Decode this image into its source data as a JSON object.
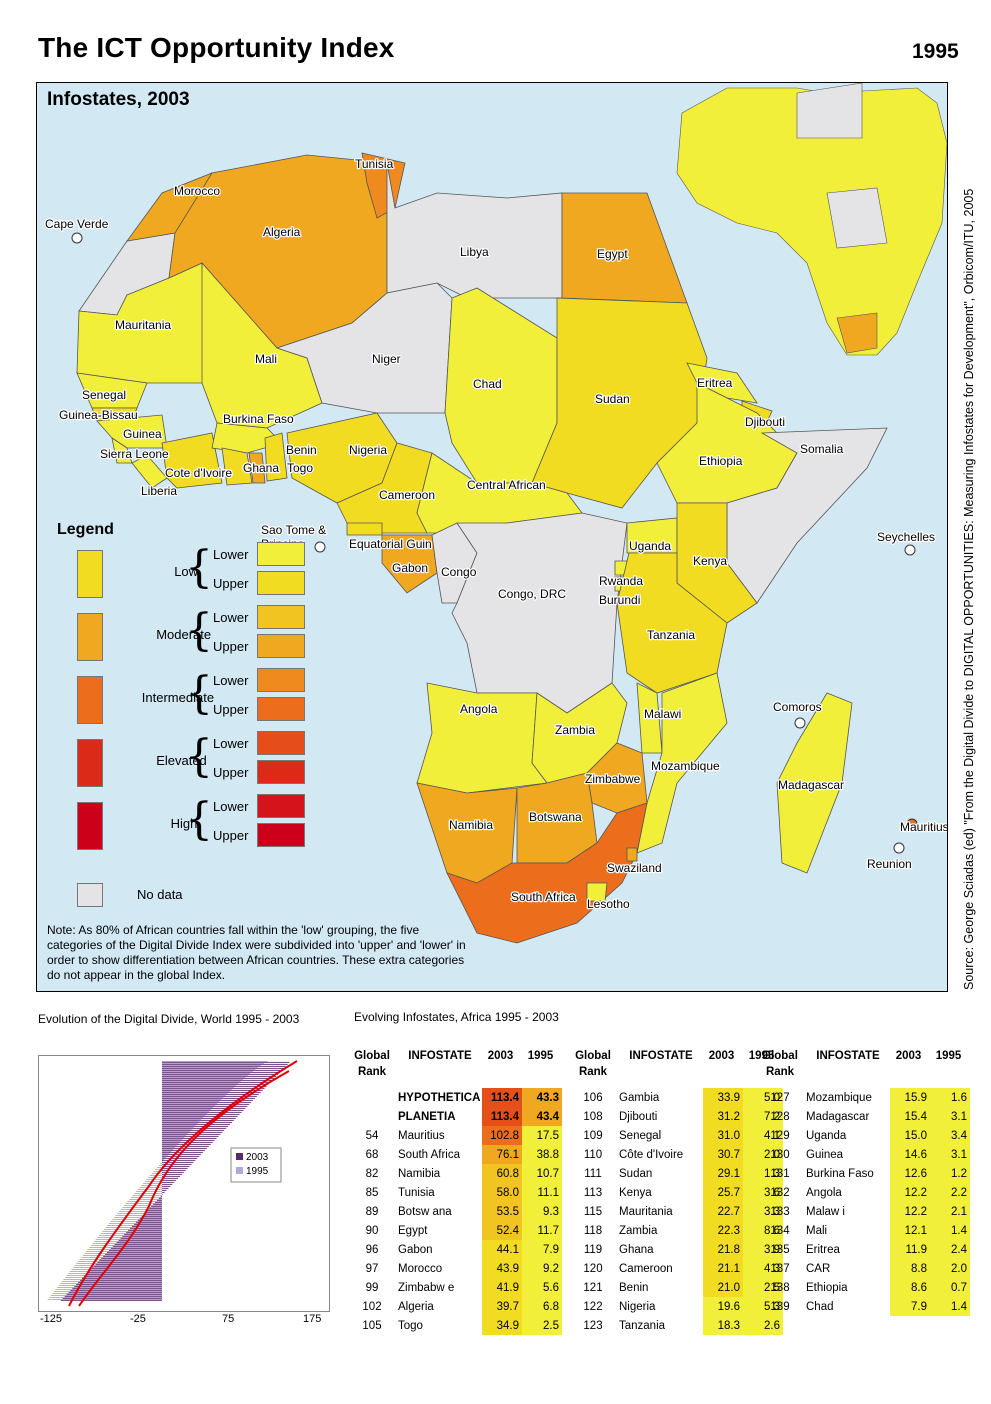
{
  "title": "The ICT Opportunity Index",
  "year": "1995",
  "map": {
    "subtitle": "Infostates, 2003",
    "source": "Source: George Sciadas (ed) \"From the Digital Divide to DIGITAL OPPORTUNITIES: Measuring Infostates for Development\", Orbicom/ITU, 2005",
    "labels": {
      "cape_verde": "Cape Verde",
      "morocco": "Morocco",
      "algeria": "Algeria",
      "tunisia": "Tunisia",
      "libya": "Libya",
      "egypt": "Egypt",
      "mauritania": "Mauritania",
      "mali": "Mali",
      "niger": "Niger",
      "chad": "Chad",
      "sudan": "Sudan",
      "eritrea": "Eritrea",
      "djibouti": "Djibouti",
      "somalia": "Somalia",
      "ethiopia": "Ethiopia",
      "senegal": "Senegal",
      "guinea_bissau": "Guinea-Bissau",
      "guinea": "Guinea",
      "sierra_leone": "Sierra Leone",
      "liberia": "Liberia",
      "cote": "Cote d'Ivoire",
      "burkina": "Burkina Faso",
      "ghana": "Ghana",
      "togo": "Togo",
      "benin": "Benin",
      "nigeria": "Nigeria",
      "cameroon": "Cameroon",
      "car": "Central African",
      "sao_tome": "Sao Tome & Principe",
      "eq_guinea": "Equatorial Guin",
      "gabon": "Gabon",
      "congo": "Congo",
      "drc": "Congo, DRC",
      "uganda": "Uganda",
      "kenya": "Kenya",
      "rwanda": "Rwanda",
      "burundi": "Burundi",
      "tanzania": "Tanzania",
      "seychelles": "Seychelles",
      "angola": "Angola",
      "zambia": "Zambia",
      "malawi": "Malawi",
      "comoros": "Comoros",
      "mozambique": "Mozambique",
      "zimbabwe": "Zimbabwe",
      "madagascar": "Madagascar",
      "namibia": "Namibia",
      "botswana": "Botswana",
      "mauritius": "Mauritius",
      "reunion": "Reunion",
      "swaziland": "Swaziland",
      "south_africa": "South Africa",
      "lesotho": "Lesotho"
    }
  },
  "legend": {
    "title": "Legend",
    "categories": [
      {
        "name": "Low",
        "lower_color": "#f2ef3a",
        "upper_color": "#f2dc22"
      },
      {
        "name": "Moderate",
        "lower_color": "#f1c422",
        "upper_color": "#f0a820"
      },
      {
        "name": "Intermediate",
        "lower_color": "#ef8a1e",
        "upper_color": "#ec6e1c"
      },
      {
        "name": "Elevated",
        "lower_color": "#e54e1a",
        "upper_color": "#dc2a18"
      },
      {
        "name": "High",
        "lower_color": "#d4141a",
        "upper_color": "#cc0018"
      }
    ],
    "lower": "Lower",
    "upper": "Upper",
    "nodata": "No data",
    "nodata_color": "#e4e4e6",
    "note": "Note: As 80% of African countries fall within the 'low' grouping, the five categories of the Digital Divide Index were subdivided into 'upper' and 'lower' in order to show differentiation between African countries. These extra categories do not appear in the global Index."
  },
  "chart": {
    "title": "Evolution of the Digital Divide, World 1995 - 2003",
    "legend": [
      "2003",
      "1995"
    ],
    "colors": {
      "2003": "#5a2a6e",
      "1995": "#b0a8d8",
      "curve": "#e00000"
    },
    "x_ticks": [
      "-125",
      "-25",
      "75",
      "175"
    ]
  },
  "table": {
    "title": "Evolving Infostates, Africa 1995 - 2003",
    "headers": {
      "rank": "Global Rank",
      "rank_a": "Global",
      "rank_b": "Rank",
      "name": "INFOSTATE",
      "y2003": "2003",
      "y1995": "1995"
    },
    "columns": [
      [
        [
          "",
          "HYPOTHETICA",
          "113.4",
          "43.3"
        ],
        [
          "",
          "PLANETIA",
          "113.4",
          "43.4"
        ],
        [
          "54",
          "Mauritius",
          "102.8",
          "17.5"
        ],
        [
          "68",
          "South Africa",
          "76.1",
          "38.8"
        ],
        [
          "82",
          "Namibia",
          "60.8",
          "10.7"
        ],
        [
          "85",
          "Tunisia",
          "58.0",
          "11.1"
        ],
        [
          "89",
          "Botsw ana",
          "53.5",
          "9.3"
        ],
        [
          "90",
          "Egypt",
          "52.4",
          "11.7"
        ],
        [
          "96",
          "Gabon",
          "44.1",
          "7.9"
        ],
        [
          "97",
          "Morocco",
          "43.9",
          "9.2"
        ],
        [
          "99",
          "Zimbabw e",
          "41.9",
          "5.6"
        ],
        [
          "102",
          "Algeria",
          "39.7",
          "6.8"
        ],
        [
          "105",
          "Togo",
          "34.9",
          "2.5"
        ]
      ],
      [
        [
          "106",
          "Gambia",
          "33.9",
          "5.0"
        ],
        [
          "108",
          "Djibouti",
          "31.2",
          "7.2"
        ],
        [
          "109",
          "Senegal",
          "31.0",
          "4.1"
        ],
        [
          "110",
          "Côte d'Ivoire",
          "30.7",
          "2.0"
        ],
        [
          "111",
          "Sudan",
          "29.1",
          "1.3"
        ],
        [
          "113",
          "Kenya",
          "25.7",
          "3.6"
        ],
        [
          "115",
          "Mauritania",
          "22.7",
          "3.3"
        ],
        [
          "118",
          "Zambia",
          "22.3",
          "8.6"
        ],
        [
          "119",
          "Ghana",
          "21.8",
          "3.9"
        ],
        [
          "120",
          "Cameroon",
          "21.1",
          "4.3"
        ],
        [
          "121",
          "Benin",
          "21.0",
          "2.5"
        ],
        [
          "122",
          "Nigeria",
          "19.6",
          "5.3"
        ],
        [
          "123",
          "Tanzania",
          "18.3",
          "2.6"
        ]
      ],
      [
        [
          "127",
          "Mozambique",
          "15.9",
          "1.6"
        ],
        [
          "128",
          "Madagascar",
          "15.4",
          "3.1"
        ],
        [
          "129",
          "Uganda",
          "15.0",
          "3.4"
        ],
        [
          "130",
          "Guinea",
          "14.6",
          "3.1"
        ],
        [
          "131",
          "Burkina Faso",
          "12.6",
          "1.2"
        ],
        [
          "132",
          "Angola",
          "12.2",
          "2.2"
        ],
        [
          "133",
          "Malaw i",
          "12.2",
          "2.1"
        ],
        [
          "134",
          "Mali",
          "12.1",
          "1.4"
        ],
        [
          "135",
          "Eritrea",
          "11.9",
          "2.4"
        ],
        [
          "137",
          "CAR",
          "8.8",
          "2.0"
        ],
        [
          "138",
          "Ethiopia",
          "8.6",
          "0.7"
        ],
        [
          "139",
          "Chad",
          "7.9",
          "1.4"
        ]
      ]
    ]
  }
}
